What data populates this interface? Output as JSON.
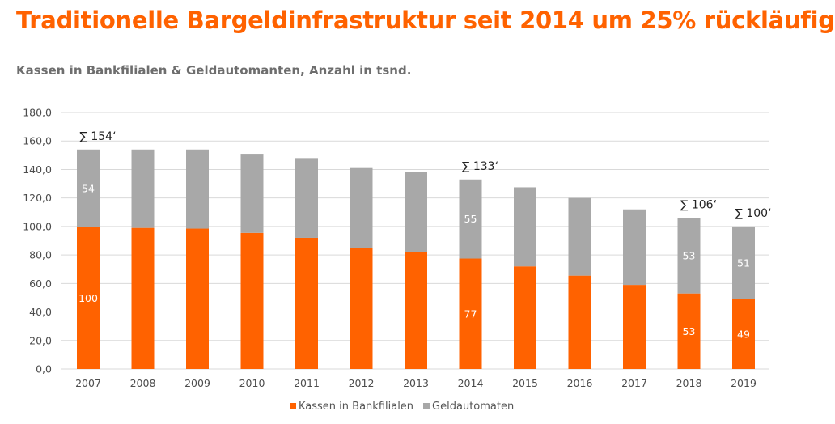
{
  "title": "Traditionelle Bargeldinfrastruktur seit 2014 um 25% rückläufig",
  "subtitle": "Kassen in Bankfilialen & Geldautomanten, Anzahl in tsnd.",
  "colors": {
    "orange": "#ff6200",
    "grey": "#a8a8a8",
    "title": "#ff6200",
    "grid": "#d9d9d9",
    "axis_text": "#4d4d4d"
  },
  "chart_data": {
    "type": "bar",
    "stacked": true,
    "categories": [
      "2007",
      "2008",
      "2009",
      "2010",
      "2011",
      "2012",
      "2013",
      "2014",
      "2015",
      "2016",
      "2017",
      "2018",
      "2019"
    ],
    "series": [
      {
        "name": "Kassen in Bankfilialen",
        "color": "#ff6200",
        "values": [
          99.5,
          99,
          98.5,
          95.5,
          92,
          85,
          82,
          77.5,
          72,
          65.5,
          59,
          53,
          49
        ]
      },
      {
        "name": "Geldautomaten",
        "color": "#a8a8a8",
        "values": [
          54.5,
          55,
          55.5,
          55.5,
          56,
          56,
          56.5,
          55.5,
          55.5,
          54.5,
          53,
          53,
          51
        ]
      }
    ],
    "ylim": [
      0,
      180
    ],
    "yticks": [
      "0,0",
      "20,0",
      "40,0",
      "60,0",
      "80,0",
      "100,0",
      "120,0",
      "140,0",
      "160,0",
      "180,0"
    ],
    "grid": true,
    "legend_position": "bottom",
    "data_labels": [
      {
        "index": 0,
        "series": 0,
        "text": "100"
      },
      {
        "index": 0,
        "series": 1,
        "text": "54"
      },
      {
        "index": 7,
        "series": 0,
        "text": "77"
      },
      {
        "index": 7,
        "series": 1,
        "text": "55"
      },
      {
        "index": 11,
        "series": 0,
        "text": "53"
      },
      {
        "index": 11,
        "series": 1,
        "text": "53"
      },
      {
        "index": 12,
        "series": 0,
        "text": "49"
      },
      {
        "index": 12,
        "series": 1,
        "text": "51"
      }
    ],
    "sum_labels": [
      {
        "index": 0,
        "text": "∑ 154‘"
      },
      {
        "index": 7,
        "text": "∑ 133‘"
      },
      {
        "index": 11,
        "text": "∑ 106‘"
      },
      {
        "index": 12,
        "text": "∑ 100‘"
      }
    ]
  }
}
